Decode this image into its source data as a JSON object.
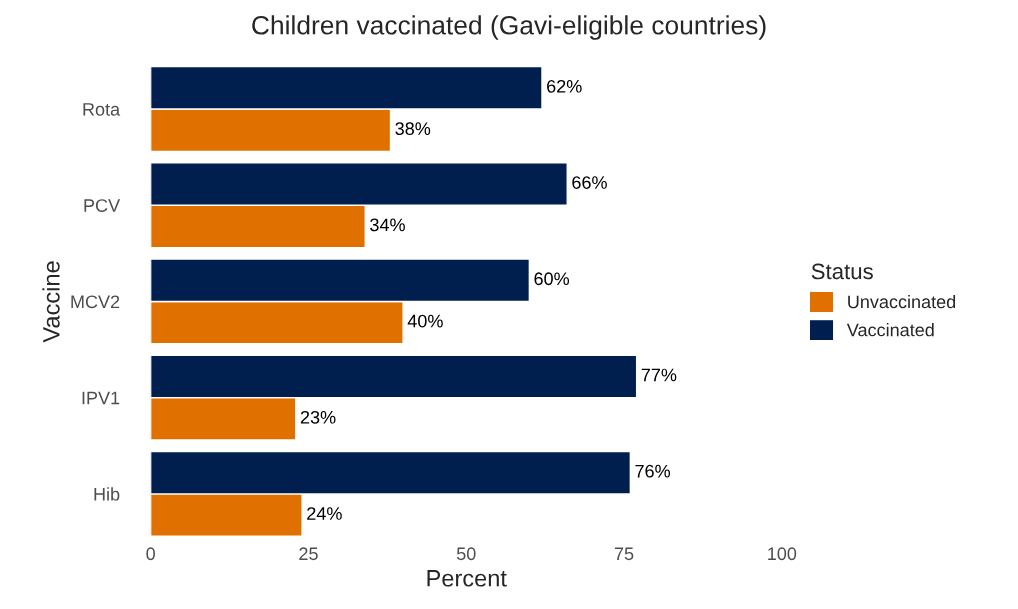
{
  "chart_data": {
    "type": "bar",
    "orientation": "horizontal",
    "title": "Children vaccinated (Gavi-eligible countries)",
    "xlabel": "Percent",
    "ylabel": "Vaccine",
    "legend_title": "Status",
    "categories": [
      "Rota",
      "PCV",
      "MCV2",
      "IPV1",
      "Hib"
    ],
    "series": [
      {
        "name": "Unvaccinated",
        "color": "#e07000",
        "values": [
          38,
          34,
          40,
          23,
          24
        ],
        "value_labels": [
          "38%",
          "34%",
          "40%",
          "23%",
          "24%"
        ]
      },
      {
        "name": "Vaccinated",
        "color": "#001f4e",
        "values": [
          62,
          66,
          60,
          77,
          76
        ],
        "value_labels": [
          "62%",
          "66%",
          "60%",
          "77%",
          "76%"
        ]
      }
    ],
    "xlim": [
      0,
      100
    ],
    "xticks": [
      0,
      25,
      50,
      75,
      100
    ],
    "grid": false,
    "legend": "right"
  }
}
